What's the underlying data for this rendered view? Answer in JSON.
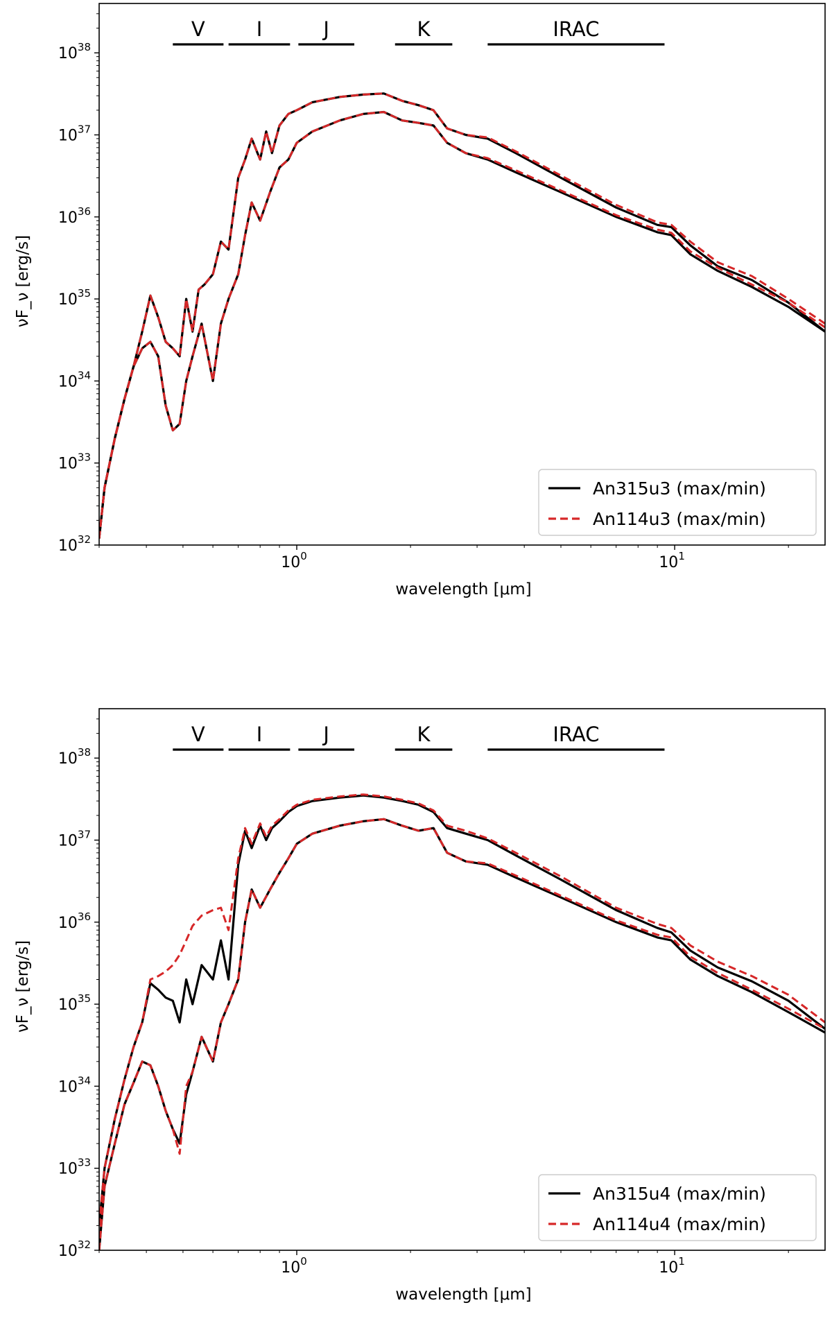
{
  "chart_data": [
    {
      "type": "line",
      "xscale": "log",
      "yscale": "log",
      "xlim": [
        0.3,
        25
      ],
      "ylim": [
        1e+32,
        4e+38
      ],
      "xlabel": "wavelength [μm]",
      "ylabel": "νF_ν [erg/s]",
      "xticks": [
        {
          "value": 1,
          "base": "10",
          "exp": "0"
        },
        {
          "value": 10,
          "base": "10",
          "exp": "1"
        }
      ],
      "yticks": [
        {
          "value": 1e+32,
          "base": "10",
          "exp": "32"
        },
        {
          "value": 1e+33,
          "base": "10",
          "exp": "33"
        },
        {
          "value": 1e+34,
          "base": "10",
          "exp": "34"
        },
        {
          "value": 1e+35,
          "base": "10",
          "exp": "35"
        },
        {
          "value": 1e+36,
          "base": "10",
          "exp": "36"
        },
        {
          "value": 1e+37,
          "base": "10",
          "exp": "37"
        },
        {
          "value": 1e+38,
          "base": "10",
          "exp": "38"
        }
      ],
      "bands": [
        {
          "label": "V",
          "from": 0.47,
          "to": 0.64
        },
        {
          "label": "I",
          "from": 0.66,
          "to": 0.96
        },
        {
          "label": "J",
          "from": 1.01,
          "to": 1.42
        },
        {
          "label": "K",
          "from": 1.82,
          "to": 2.58
        },
        {
          "label": "IRAC",
          "from": 3.2,
          "to": 9.4
        }
      ],
      "legend": {
        "position": "lower-right",
        "entries": [
          {
            "label": "An315u3 (max/min)",
            "color": "#000000",
            "dash": "solid"
          },
          {
            "label": "An114u3 (max/min)",
            "color": "#d62728",
            "dash": "dashed"
          }
        ]
      },
      "series": [
        {
          "name": "An315u3 (max)",
          "color": "#000000",
          "dash": "solid",
          "x": [
            0.3,
            0.31,
            0.33,
            0.35,
            0.37,
            0.39,
            0.41,
            0.43,
            0.45,
            0.47,
            0.49,
            0.51,
            0.53,
            0.55,
            0.57,
            0.6,
            0.63,
            0.66,
            0.7,
            0.73,
            0.76,
            0.8,
            0.83,
            0.86,
            0.9,
            0.95,
            1.0,
            1.1,
            1.3,
            1.5,
            1.7,
            1.9,
            2.1,
            2.3,
            2.5,
            2.8,
            3.2,
            3.8,
            5,
            7,
            9,
            9.8,
            11,
            13,
            16,
            20,
            25
          ],
          "y": [
            1.2e+32,
            5e+32,
            2e+33,
            6e+33,
            1.5e+34,
            4e+34,
            1.1e+35,
            6e+34,
            3e+34,
            2.5e+34,
            2e+34,
            1e+35,
            4e+34,
            1.3e+35,
            1.5e+35,
            2e+35,
            5e+35,
            4e+35,
            3e+36,
            5e+36,
            9e+36,
            5e+36,
            1.1e+37,
            6e+36,
            1.3e+37,
            1.8e+37,
            2e+37,
            2.5e+37,
            2.9e+37,
            3.1e+37,
            3.2e+37,
            2.6e+37,
            2.3e+37,
            2e+37,
            1.2e+37,
            1e+37,
            9e+36,
            6e+36,
            3e+36,
            1.3e+36,
            8e+35,
            7.5e+35,
            4.5e+35,
            2.5e+35,
            1.7e+35,
            9e+34,
            4e+34
          ]
        },
        {
          "name": "An315u3 (min)",
          "color": "#000000",
          "dash": "solid",
          "x": [
            0.3,
            0.31,
            0.33,
            0.35,
            0.37,
            0.39,
            0.41,
            0.43,
            0.45,
            0.47,
            0.49,
            0.51,
            0.53,
            0.56,
            0.6,
            0.63,
            0.66,
            0.7,
            0.73,
            0.76,
            0.8,
            0.85,
            0.9,
            0.95,
            1.0,
            1.1,
            1.3,
            1.5,
            1.7,
            1.9,
            2.1,
            2.3,
            2.5,
            2.8,
            3.2,
            3.8,
            5,
            7,
            9,
            9.8,
            11,
            13,
            16,
            20,
            25
          ],
          "y": [
            1.2e+32,
            5e+32,
            2e+33,
            6e+33,
            1.5e+34,
            2.5e+34,
            3e+34,
            2e+34,
            5e+33,
            2.5e+33,
            3e+33,
            1e+34,
            2e+34,
            5e+34,
            1e+34,
            5e+34,
            1e+35,
            2e+35,
            6e+35,
            1.5e+36,
            9e+35,
            2e+36,
            4e+36,
            5e+36,
            8e+36,
            1.1e+37,
            1.5e+37,
            1.8e+37,
            1.9e+37,
            1.5e+37,
            1.4e+37,
            1.3e+37,
            8e+36,
            6e+36,
            5e+36,
            3.5e+36,
            2e+36,
            1e+36,
            6.5e+35,
            6e+35,
            3.5e+35,
            2.2e+35,
            1.4e+35,
            8e+34,
            4e+34
          ]
        },
        {
          "name": "An114u3 (max)",
          "color": "#d62728",
          "dash": "dashed",
          "x": [
            0.3,
            0.31,
            0.33,
            0.35,
            0.37,
            0.39,
            0.41,
            0.43,
            0.45,
            0.47,
            0.49,
            0.51,
            0.53,
            0.55,
            0.57,
            0.6,
            0.63,
            0.66,
            0.7,
            0.73,
            0.76,
            0.8,
            0.83,
            0.86,
            0.9,
            0.95,
            1.0,
            1.1,
            1.3,
            1.5,
            1.7,
            1.9,
            2.1,
            2.3,
            2.5,
            2.8,
            3.2,
            3.8,
            5,
            7,
            9,
            9.8,
            11,
            13,
            16,
            20,
            25
          ],
          "y": [
            1.2e+32,
            5e+32,
            2e+33,
            6e+33,
            1.5e+34,
            4e+34,
            1.1e+35,
            6e+34,
            3e+34,
            2.5e+34,
            2e+34,
            1e+35,
            4e+34,
            1.3e+35,
            1.5e+35,
            2e+35,
            5e+35,
            4e+35,
            3e+36,
            5e+36,
            9e+36,
            5e+36,
            1.1e+37,
            6e+36,
            1.3e+37,
            1.8e+37,
            2e+37,
            2.5e+37,
            2.9e+37,
            3.1e+37,
            3.2e+37,
            2.6e+37,
            2.3e+37,
            2e+37,
            1.2e+37,
            1e+37,
            9.3e+36,
            6.3e+36,
            3.2e+36,
            1.4e+36,
            8.6e+35,
            8e+35,
            5e+35,
            2.8e+35,
            1.9e+35,
            1e+35,
            5e+34
          ]
        },
        {
          "name": "An114u3 (min)",
          "color": "#d62728",
          "dash": "dashed",
          "x": [
            0.3,
            0.31,
            0.33,
            0.35,
            0.37,
            0.39,
            0.41,
            0.43,
            0.45,
            0.47,
            0.49,
            0.51,
            0.53,
            0.56,
            0.6,
            0.63,
            0.66,
            0.7,
            0.73,
            0.76,
            0.8,
            0.85,
            0.9,
            0.95,
            1.0,
            1.1,
            1.3,
            1.5,
            1.7,
            1.9,
            2.1,
            2.3,
            2.5,
            2.8,
            3.2,
            3.8,
            5,
            7,
            9,
            9.8,
            11,
            13,
            16,
            20,
            25
          ],
          "y": [
            1.2e+32,
            5e+32,
            2e+33,
            6e+33,
            1.5e+34,
            2.5e+34,
            3e+34,
            2e+34,
            5e+33,
            2.5e+33,
            3e+33,
            1e+34,
            2e+34,
            5e+34,
            1e+34,
            5e+34,
            1e+35,
            2e+35,
            6e+35,
            1.5e+36,
            9e+35,
            2e+36,
            4e+36,
            5e+36,
            8e+36,
            1.1e+37,
            1.5e+37,
            1.8e+37,
            1.9e+37,
            1.5e+37,
            1.4e+37,
            1.3e+37,
            8e+36,
            6e+36,
            5.2e+36,
            3.7e+36,
            2.1e+36,
            1.05e+36,
            7e+35,
            6.4e+35,
            3.8e+35,
            2.4e+35,
            1.5e+35,
            9e+34,
            4.5e+34
          ]
        }
      ]
    },
    {
      "type": "line",
      "xscale": "log",
      "yscale": "log",
      "xlim": [
        0.3,
        25
      ],
      "ylim": [
        1e+32,
        4e+38
      ],
      "xlabel": "wavelength [μm]",
      "ylabel": "νF_ν [erg/s]",
      "xticks": [
        {
          "value": 1,
          "base": "10",
          "exp": "0"
        },
        {
          "value": 10,
          "base": "10",
          "exp": "1"
        }
      ],
      "yticks": [
        {
          "value": 1e+32,
          "base": "10",
          "exp": "32"
        },
        {
          "value": 1e+33,
          "base": "10",
          "exp": "33"
        },
        {
          "value": 1e+34,
          "base": "10",
          "exp": "34"
        },
        {
          "value": 1e+35,
          "base": "10",
          "exp": "35"
        },
        {
          "value": 1e+36,
          "base": "10",
          "exp": "36"
        },
        {
          "value": 1e+37,
          "base": "10",
          "exp": "37"
        },
        {
          "value": 1e+38,
          "base": "10",
          "exp": "38"
        }
      ],
      "bands": [
        {
          "label": "V",
          "from": 0.47,
          "to": 0.64
        },
        {
          "label": "I",
          "from": 0.66,
          "to": 0.96
        },
        {
          "label": "J",
          "from": 1.01,
          "to": 1.42
        },
        {
          "label": "K",
          "from": 1.82,
          "to": 2.58
        },
        {
          "label": "IRAC",
          "from": 3.2,
          "to": 9.4
        }
      ],
      "legend": {
        "position": "lower-right",
        "entries": [
          {
            "label": "An315u4 (max/min)",
            "color": "#000000",
            "dash": "solid"
          },
          {
            "label": "An114u4 (max/min)",
            "color": "#d62728",
            "dash": "dashed"
          }
        ]
      },
      "series": [
        {
          "name": "An315u4 (max)",
          "color": "#000000",
          "dash": "solid",
          "x": [
            0.3,
            0.31,
            0.33,
            0.35,
            0.37,
            0.39,
            0.41,
            0.43,
            0.45,
            0.47,
            0.49,
            0.51,
            0.53,
            0.56,
            0.6,
            0.63,
            0.66,
            0.7,
            0.73,
            0.76,
            0.8,
            0.83,
            0.86,
            0.9,
            0.95,
            1.0,
            1.1,
            1.3,
            1.5,
            1.7,
            1.9,
            2.1,
            2.3,
            2.5,
            2.8,
            3.2,
            3.8,
            5,
            7,
            9,
            9.8,
            11,
            13,
            16,
            20,
            25
          ],
          "y": [
            2e+32,
            1e+33,
            4e+33,
            1.2e+34,
            3e+34,
            6e+34,
            1.8e+35,
            1.5e+35,
            1.2e+35,
            1.1e+35,
            6e+34,
            2e+35,
            1e+35,
            3e+35,
            2e+35,
            6e+35,
            2e+35,
            5e+36,
            1.3e+37,
            8e+36,
            1.5e+37,
            1e+37,
            1.4e+37,
            1.7e+37,
            2.2e+37,
            2.6e+37,
            3e+37,
            3.3e+37,
            3.5e+37,
            3.3e+37,
            3e+37,
            2.7e+37,
            2.2e+37,
            1.4e+37,
            1.2e+37,
            1e+37,
            6.5e+36,
            3.3e+36,
            1.4e+36,
            8.5e+35,
            7.5e+35,
            4.5e+35,
            2.8e+35,
            1.9e+35,
            1.1e+35,
            5e+34
          ]
        },
        {
          "name": "An315u4 (min)",
          "color": "#000000",
          "dash": "solid",
          "x": [
            0.3,
            0.31,
            0.33,
            0.35,
            0.37,
            0.39,
            0.41,
            0.43,
            0.45,
            0.47,
            0.49,
            0.51,
            0.53,
            0.56,
            0.6,
            0.63,
            0.66,
            0.7,
            0.73,
            0.76,
            0.8,
            0.85,
            0.9,
            0.95,
            1.0,
            1.1,
            1.3,
            1.5,
            1.7,
            1.9,
            2.1,
            2.3,
            2.5,
            2.8,
            3.2,
            3.8,
            5,
            7,
            9,
            9.8,
            11,
            13,
            16,
            20,
            25
          ],
          "y": [
            1e+32,
            6e+32,
            2e+33,
            6e+33,
            1.1e+34,
            2e+34,
            1.8e+34,
            1e+34,
            5e+33,
            3e+33,
            2e+33,
            8e+33,
            1.5e+34,
            4e+34,
            2e+34,
            6e+34,
            1e+35,
            2e+35,
            1e+36,
            2.5e+36,
            1.5e+36,
            2.5e+36,
            4e+36,
            6e+36,
            9e+36,
            1.2e+37,
            1.5e+37,
            1.7e+37,
            1.8e+37,
            1.5e+37,
            1.3e+37,
            1.4e+37,
            7e+36,
            5.5e+36,
            5e+36,
            3.5e+36,
            2e+36,
            1e+36,
            6.5e+35,
            6e+35,
            3.5e+35,
            2.2e+35,
            1.4e+35,
            8e+34,
            4.5e+34
          ]
        },
        {
          "name": "An114u4 (max)",
          "color": "#d62728",
          "dash": "dashed",
          "x": [
            0.3,
            0.31,
            0.33,
            0.35,
            0.37,
            0.39,
            0.41,
            0.43,
            0.45,
            0.47,
            0.49,
            0.51,
            0.53,
            0.56,
            0.6,
            0.63,
            0.66,
            0.7,
            0.73,
            0.76,
            0.8,
            0.83,
            0.86,
            0.9,
            0.95,
            1.0,
            1.1,
            1.3,
            1.5,
            1.7,
            1.9,
            2.1,
            2.3,
            2.5,
            2.8,
            3.2,
            3.8,
            5,
            7,
            9,
            9.8,
            11,
            13,
            16,
            20,
            25
          ],
          "y": [
            2e+32,
            1e+33,
            4e+33,
            1.2e+34,
            3e+34,
            6e+34,
            2e+35,
            2.2e+35,
            2.5e+35,
            3e+35,
            4e+35,
            6e+35,
            9e+35,
            1.2e+36,
            1.4e+36,
            1.5e+36,
            8e+35,
            6e+36,
            1.4e+37,
            9e+36,
            1.6e+37,
            1.1e+37,
            1.5e+37,
            1.8e+37,
            2.3e+37,
            2.7e+37,
            3.1e+37,
            3.4e+37,
            3.6e+37,
            3.4e+37,
            3.1e+37,
            2.8e+37,
            2.3e+37,
            1.5e+37,
            1.3e+37,
            1.05e+37,
            7e+36,
            3.6e+36,
            1.5e+36,
            9.5e+35,
            8.5e+35,
            5.2e+35,
            3.3e+35,
            2.2e+35,
            1.3e+35,
            6e+34
          ]
        },
        {
          "name": "An114u4 (min)",
          "color": "#d62728",
          "dash": "dashed",
          "x": [
            0.3,
            0.31,
            0.33,
            0.35,
            0.37,
            0.39,
            0.41,
            0.43,
            0.45,
            0.47,
            0.49,
            0.51,
            0.53,
            0.56,
            0.6,
            0.63,
            0.66,
            0.7,
            0.73,
            0.76,
            0.8,
            0.85,
            0.9,
            0.95,
            1.0,
            1.1,
            1.3,
            1.5,
            1.7,
            1.9,
            2.1,
            2.3,
            2.5,
            2.8,
            3.2,
            3.8,
            5,
            7,
            9,
            9.8,
            11,
            13,
            16,
            20,
            25
          ],
          "y": [
            1e+32,
            6e+32,
            2e+33,
            6e+33,
            1.1e+34,
            2e+34,
            1.8e+34,
            1e+34,
            5e+33,
            3e+33,
            1.5e+33,
            1e+34,
            1.5e+34,
            4e+34,
            2e+34,
            6e+34,
            1e+35,
            2e+35,
            1e+36,
            2.5e+36,
            1.5e+36,
            2.5e+36,
            4e+36,
            6e+36,
            9e+36,
            1.2e+37,
            1.5e+37,
            1.7e+37,
            1.8e+37,
            1.5e+37,
            1.3e+37,
            1.4e+37,
            7e+36,
            5.5e+36,
            5.2e+36,
            3.7e+36,
            2.1e+36,
            1.05e+36,
            7e+35,
            6.5e+35,
            3.8e+35,
            2.4e+35,
            1.5e+35,
            8.8e+34,
            5e+34
          ]
        }
      ]
    }
  ]
}
